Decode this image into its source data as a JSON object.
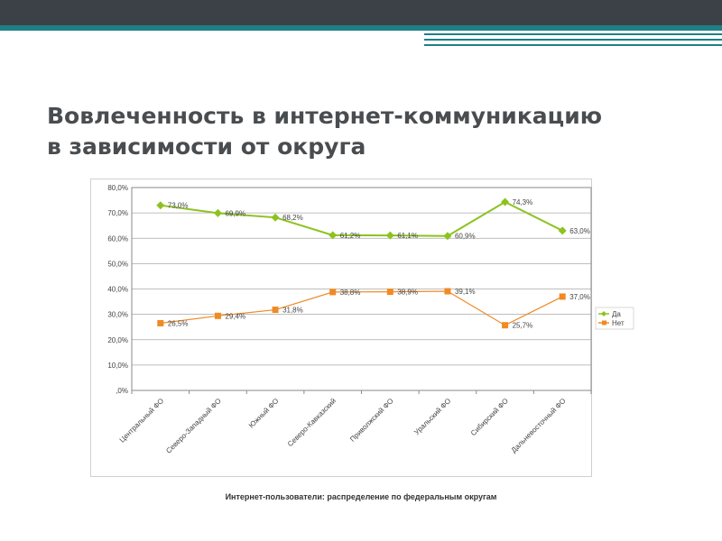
{
  "slide": {
    "title_line1": "Вовлеченность в интернет-коммуникацию",
    "title_line2": "в зависимости от округа",
    "caption": "Интернет-пользователи: распределение по федеральным округам"
  },
  "colors": {
    "header_dark": "#3b4147",
    "accent_teal": "#1f7f86",
    "series_da": "#8dc21f",
    "series_net": "#f08a24"
  },
  "chart_data": {
    "type": "line",
    "categories": [
      "Центральный ФО",
      "Северо-Западный ФО",
      "Южный ФО",
      "Северо-Кавказский",
      "Приволжский ФО",
      "Уральский ФО",
      "Сибирский ФО",
      "Дальневосточный ФО"
    ],
    "series": [
      {
        "name": "Да",
        "values": [
          73.0,
          69.9,
          68.2,
          61.2,
          61.1,
          60.9,
          74.3,
          63.0
        ],
        "labels": [
          "73,0%",
          "69,9%",
          "68,2%",
          "61,2%",
          "61,1%",
          "60,9%",
          "74,3%",
          "63,0%"
        ],
        "color": "#8dc21f",
        "marker": "diamond"
      },
      {
        "name": "Нет",
        "values": [
          26.5,
          29.4,
          31.8,
          38.8,
          38.9,
          39.1,
          25.7,
          37.0
        ],
        "labels": [
          "26,5%",
          "29,4%",
          "31,8%",
          "38,8%",
          "38,9%",
          "39,1%",
          "25,7%",
          "37,0%"
        ],
        "color": "#f08a24",
        "marker": "square"
      }
    ],
    "yticks": [
      0,
      10,
      20,
      30,
      40,
      50,
      60,
      70,
      80
    ],
    "ytick_labels": [
      ",0%",
      "10,0%",
      "20,0%",
      "30,0%",
      "40,0%",
      "50,0%",
      "60,0%",
      "70,0%",
      "80,0%"
    ],
    "ylim": [
      0,
      80
    ],
    "grid": true,
    "legend": "right"
  }
}
